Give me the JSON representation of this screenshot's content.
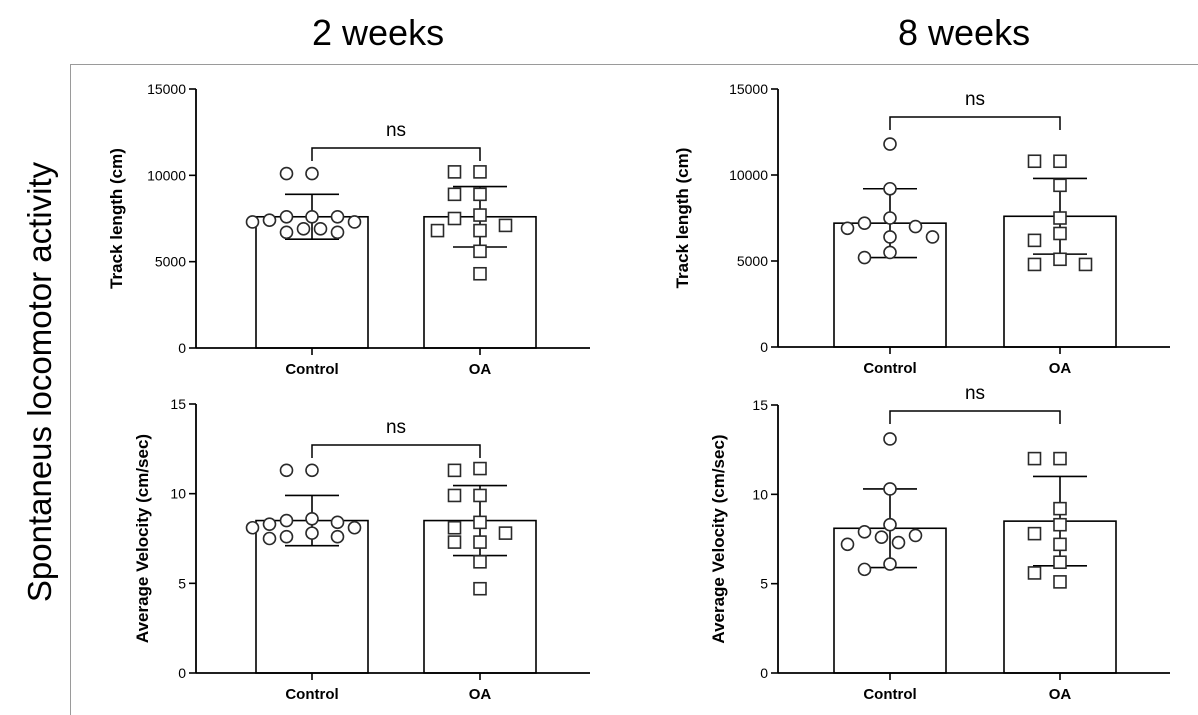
{
  "figure": {
    "side_title": "Spontaneus locomotor activity",
    "column_titles": [
      "2 weeks",
      "8 weeks"
    ]
  },
  "chart_data": [
    {
      "type": "bar",
      "panel": "2 weeks - track length",
      "categories": [
        "Control",
        "OA"
      ],
      "ylabel": "Track length (cm)",
      "ylim": [
        0,
        15000
      ],
      "yticks": [
        0,
        5000,
        10000,
        15000
      ],
      "means": [
        7600,
        7600
      ],
      "sd": [
        1300,
        1750
      ],
      "points": [
        [
          10100,
          10100,
          7600,
          7600,
          7600,
          7400,
          7300,
          7300,
          6900,
          6900,
          6700,
          6700
        ],
        [
          10200,
          10200,
          8900,
          8900,
          7700,
          7500,
          7100,
          6800,
          6800,
          5600,
          4300
        ]
      ],
      "markers": [
        "circle",
        "square"
      ],
      "annotation": "ns",
      "grid": false
    },
    {
      "type": "bar",
      "panel": "2 weeks - average velocity",
      "categories": [
        "Control",
        "OA"
      ],
      "ylabel": "Average Velocity (cm/sec)",
      "ylim": [
        0,
        15
      ],
      "yticks": [
        0,
        5,
        10,
        15
      ],
      "means": [
        8.5,
        8.5
      ],
      "sd": [
        1.4,
        1.95
      ],
      "points": [
        [
          11.3,
          11.3,
          8.6,
          8.5,
          8.4,
          8.3,
          8.1,
          8.1,
          7.8,
          7.6,
          7.6,
          7.5
        ],
        [
          11.4,
          11.3,
          9.9,
          9.9,
          8.4,
          8.1,
          7.8,
          7.3,
          7.3,
          6.2,
          4.7
        ]
      ],
      "markers": [
        "circle",
        "square"
      ],
      "annotation": "ns",
      "grid": false
    },
    {
      "type": "bar",
      "panel": "8 weeks - track length",
      "categories": [
        "Control",
        "OA"
      ],
      "ylabel": "Track length (cm)",
      "ylim": [
        0,
        15000
      ],
      "yticks": [
        0,
        5000,
        10000,
        15000
      ],
      "means": [
        7200,
        7600
      ],
      "sd": [
        2000,
        2200
      ],
      "points": [
        [
          11800,
          9200,
          7500,
          7200,
          7000,
          6900,
          6400,
          6400,
          5500,
          5200
        ],
        [
          10800,
          10800,
          9400,
          7500,
          6600,
          6200,
          5100,
          4800,
          4800
        ]
      ],
      "markers": [
        "circle",
        "square"
      ],
      "annotation": "ns",
      "grid": false
    },
    {
      "type": "bar",
      "panel": "8 weeks - average velocity",
      "categories": [
        "Control",
        "OA"
      ],
      "ylabel": "Average Velocity (cm/sec)",
      "ylim": [
        0,
        15
      ],
      "yticks": [
        0,
        5,
        10,
        15
      ],
      "means": [
        8.1,
        8.5
      ],
      "sd": [
        2.2,
        2.5
      ],
      "points": [
        [
          13.1,
          10.3,
          8.3,
          7.9,
          7.7,
          7.6,
          7.3,
          7.2,
          6.1,
          5.8
        ],
        [
          12.0,
          12.0,
          9.2,
          8.3,
          7.8,
          7.2,
          6.2,
          5.6,
          5.1
        ]
      ],
      "markers": [
        "circle",
        "square"
      ],
      "annotation": "ns",
      "grid": false
    }
  ]
}
